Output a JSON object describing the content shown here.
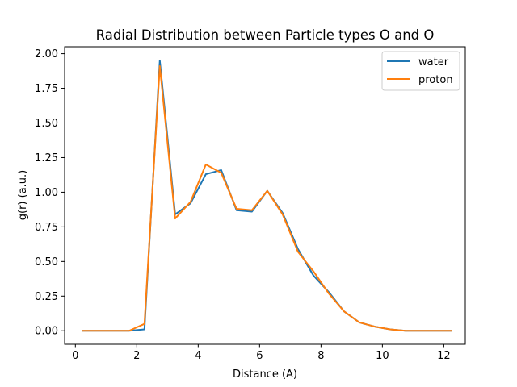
{
  "chart_data": {
    "type": "line",
    "title": "Radial Distribution between Particle types O and O",
    "xlabel": "Distance (A)",
    "ylabel": "g(r) (a.u.)",
    "xlim": [
      -0.35,
      12.7
    ],
    "ylim": [
      -0.0975,
      2.05
    ],
    "xticks": [
      0,
      2,
      4,
      6,
      8,
      10,
      12
    ],
    "xtick_labels": [
      "0",
      "2",
      "4",
      "6",
      "8",
      "10",
      "12"
    ],
    "yticks": [
      0.0,
      0.25,
      0.5,
      0.75,
      1.0,
      1.25,
      1.5,
      1.75,
      2.0
    ],
    "ytick_labels": [
      "0.00",
      "0.25",
      "0.50",
      "0.75",
      "1.00",
      "1.25",
      "1.50",
      "1.75",
      "2.00"
    ],
    "grid": false,
    "legend_position": "top-right",
    "x": [
      0.25,
      0.75,
      1.25,
      1.75,
      2.25,
      2.75,
      3.25,
      3.75,
      4.25,
      4.75,
      5.25,
      5.75,
      6.25,
      6.75,
      7.25,
      7.75,
      8.25,
      8.75,
      9.25,
      9.75,
      10.25,
      10.75,
      11.25,
      11.75,
      12.25
    ],
    "series": [
      {
        "name": "water",
        "color": "#1f77b4",
        "values": [
          0.0,
          0.0,
          0.0,
          0.0,
          0.01,
          1.95,
          0.84,
          0.92,
          1.13,
          1.16,
          0.87,
          0.86,
          1.01,
          0.85,
          0.59,
          0.4,
          0.28,
          0.14,
          0.06,
          0.03,
          0.01,
          0.0,
          0.0,
          0.0,
          0.0
        ]
      },
      {
        "name": "proton",
        "color": "#ff7f0e",
        "values": [
          0.0,
          0.0,
          0.0,
          0.0,
          0.05,
          1.91,
          0.81,
          0.93,
          1.2,
          1.14,
          0.88,
          0.87,
          1.01,
          0.84,
          0.57,
          0.43,
          0.27,
          0.14,
          0.06,
          0.03,
          0.01,
          0.0,
          0.0,
          0.0,
          0.0
        ]
      }
    ]
  }
}
